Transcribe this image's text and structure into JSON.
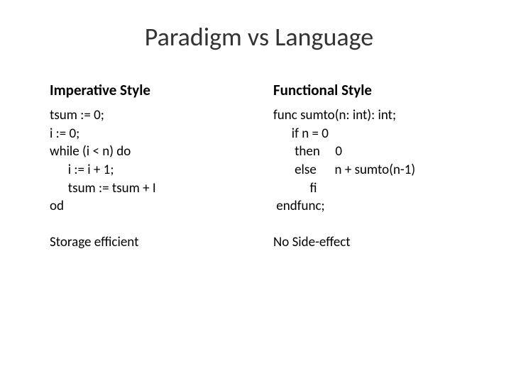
{
  "title": "Paradigm vs Language",
  "left": {
    "header": "Imperative Style",
    "code": "tsum := 0;\ni := 0;\nwhile (i < n) do\n      i := i + 1;\n      tsum := tsum + I\nod",
    "note": "Storage efficient"
  },
  "right": {
    "header": "Functional Style",
    "code": "func sumto(n: int): int;\n      if n = 0\n       then     0\n       else      n + sumto(n-1)\n            fi\n endfunc;",
    "note": "No Side-effect"
  },
  "colors": {
    "background": "#ffffff",
    "text": "#000000"
  },
  "typography": {
    "title_fontsize": 36,
    "header_fontsize": 21,
    "body_fontsize": 19,
    "font_family": "Calibri"
  }
}
